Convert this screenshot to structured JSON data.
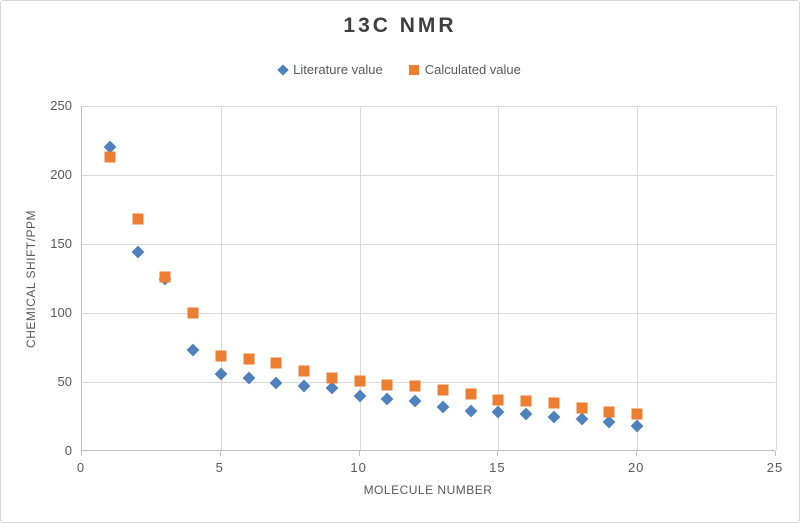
{
  "title": {
    "text": "13C NMR",
    "color": "#3F3F3F"
  },
  "legend": {
    "items": [
      {
        "label": "Literature value",
        "marker": "diamond",
        "color": "#4E81BD"
      },
      {
        "label": "Calculated value",
        "marker": "square",
        "color": "#ED7D31"
      }
    ]
  },
  "axes": {
    "x_title": "MOLECULE NUMBER",
    "y_title": "CHEMICAL SHIFT/PPM",
    "label_color": "#595959",
    "gridline_color": "#D9D9D9",
    "axis_line_color": "#BFBFBF"
  },
  "chart_data": {
    "type": "scatter",
    "title": "13C NMR",
    "xlabel": "MOLECULE NUMBER",
    "ylabel": "CHEMICAL SHIFT/PPM",
    "xlim": [
      0,
      25
    ],
    "ylim": [
      0,
      250
    ],
    "x_ticks": [
      0,
      5,
      10,
      15,
      20,
      25
    ],
    "y_ticks": [
      0,
      50,
      100,
      150,
      200,
      250
    ],
    "grid": true,
    "legend_position": "top-center",
    "x": [
      1,
      2,
      3,
      4,
      5,
      6,
      7,
      8,
      9,
      10,
      11,
      12,
      13,
      14,
      15,
      16,
      17,
      18,
      19,
      20
    ],
    "series": [
      {
        "name": "Literature value",
        "marker": "diamond",
        "color": "#4E81BD",
        "values": [
          220,
          144,
          125,
          73,
          56,
          53,
          49,
          47,
          46,
          40,
          38,
          36,
          32,
          29,
          28,
          27,
          25,
          23,
          21,
          18
        ]
      },
      {
        "name": "Calculated value",
        "marker": "square",
        "color": "#ED7D31",
        "values": [
          213,
          168,
          126,
          100,
          69,
          67,
          64,
          58,
          53,
          51,
          48,
          47,
          44,
          41,
          37,
          36,
          35,
          31,
          28,
          27
        ]
      }
    ]
  }
}
